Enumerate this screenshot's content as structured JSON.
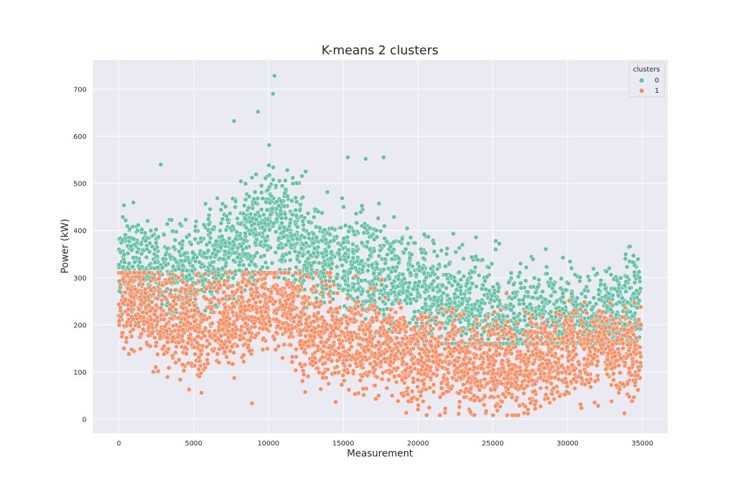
{
  "chart_data": {
    "type": "scatter",
    "title": "K-means 2 clusters",
    "xlabel": "Measurement",
    "ylabel": "Power (kW)",
    "xlim": [
      -1750,
      36700
    ],
    "ylim": [
      -30,
      762
    ],
    "xticks": [
      0,
      5000,
      10000,
      15000,
      20000,
      25000,
      30000,
      35000
    ],
    "yticks": [
      0,
      100,
      200,
      300,
      400,
      500,
      600,
      700
    ],
    "grid": true,
    "legend": {
      "title": "clusters",
      "placement": "top-right",
      "entries": [
        "0",
        "1"
      ]
    },
    "series": [
      {
        "name": "0",
        "color": "#66c2a5",
        "point_count": 3000,
        "x_range": [
          0,
          34900
        ],
        "y_range": [
          160,
          730
        ],
        "trend_centers": [
          [
            0,
            330
          ],
          [
            2500,
            310
          ],
          [
            5000,
            300
          ],
          [
            7500,
            350
          ],
          [
            10000,
            420
          ],
          [
            11000,
            410
          ],
          [
            12500,
            360
          ],
          [
            15000,
            330
          ],
          [
            17500,
            300
          ],
          [
            20000,
            280
          ],
          [
            22500,
            240
          ],
          [
            25000,
            220
          ],
          [
            27500,
            215
          ],
          [
            30000,
            205
          ],
          [
            32500,
            215
          ],
          [
            34900,
            250
          ]
        ],
        "notable_points": [
          [
            10400,
            728
          ],
          [
            10300,
            690
          ],
          [
            9300,
            652
          ],
          [
            7700,
            632
          ],
          [
            15300,
            555
          ],
          [
            16500,
            552
          ],
          [
            17700,
            555
          ],
          [
            2800,
            540
          ]
        ]
      },
      {
        "name": "1",
        "color": "#fc8d62",
        "point_count": 3000,
        "x_range": [
          0,
          34900
        ],
        "y_range": [
          8,
          310
        ],
        "trend_centers": [
          [
            0,
            270
          ],
          [
            2500,
            220
          ],
          [
            5000,
            190
          ],
          [
            7500,
            210
          ],
          [
            10000,
            250
          ],
          [
            11000,
            240
          ],
          [
            12500,
            200
          ],
          [
            15000,
            170
          ],
          [
            17500,
            160
          ],
          [
            20000,
            130
          ],
          [
            22500,
            120
          ],
          [
            25000,
            115
          ],
          [
            27500,
            110
          ],
          [
            30000,
            140
          ],
          [
            32500,
            150
          ],
          [
            34900,
            130
          ]
        ],
        "notable_points": [
          [
            26700,
            8
          ],
          [
            33800,
            12
          ],
          [
            23500,
            15
          ],
          [
            20000,
            20
          ],
          [
            8900,
            33
          ],
          [
            14500,
            36
          ]
        ]
      }
    ]
  }
}
